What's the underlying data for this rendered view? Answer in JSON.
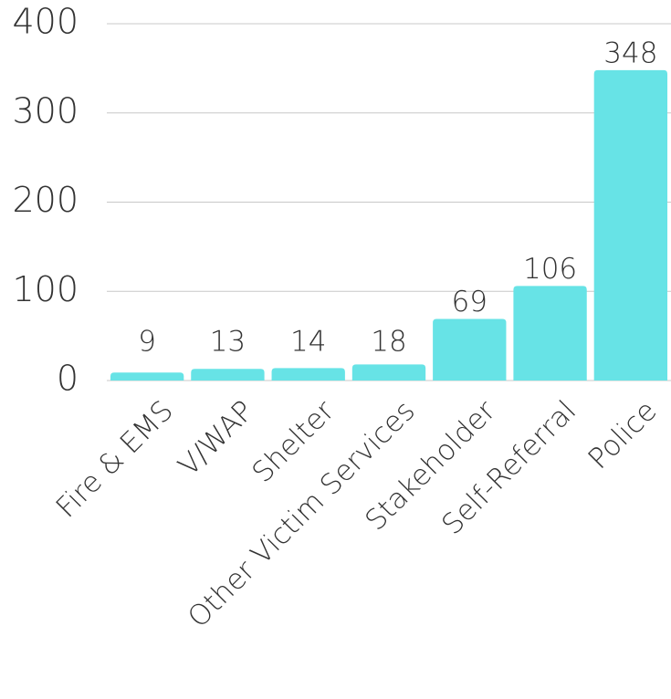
{
  "chart_data": {
    "type": "bar",
    "categories": [
      "Fire & EMS",
      "V/WAP",
      "Shelter",
      "Other Victim Services",
      "Stakeholder",
      "Self-Referral",
      "Police"
    ],
    "values": [
      9,
      13,
      14,
      18,
      69,
      106,
      348
    ],
    "color": "#67e3e6",
    "ylim": [
      0,
      400
    ],
    "yticks": [
      0,
      100,
      200,
      300,
      400
    ],
    "grid": true
  }
}
